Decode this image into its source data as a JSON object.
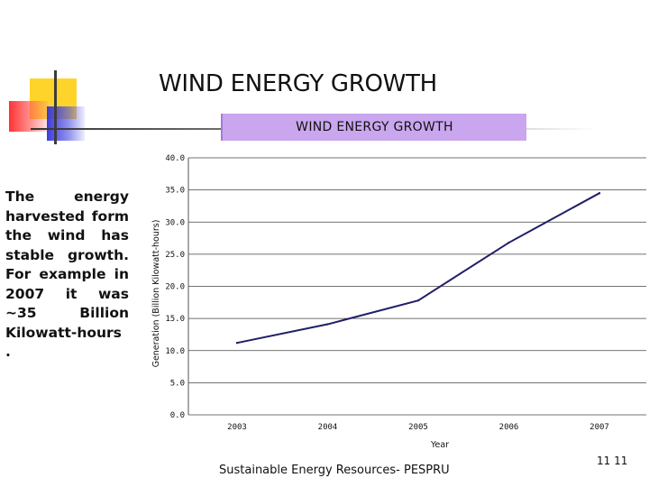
{
  "slide": {
    "title": "WIND ENERGY GROWTH",
    "body_text": "The energy harvested form the wind has stable growth. For example in 2007 it was ~35 Billion Kilowatt-hours .",
    "footer": "Sustainable Energy Resources- PESPRU",
    "page_number": "11 11"
  },
  "colors": {
    "banner": "#c9a6ee",
    "series_line": "#1f1f66",
    "accent_yellow": "#ffd42a",
    "accent_red": "#ff2a2a",
    "accent_blue": "#3232dc"
  },
  "chart_data": {
    "type": "line",
    "title": "WIND ENERGY GROWTH",
    "xlabel": "Year",
    "ylabel": "Generation (Billion Kilowatt-hours)",
    "x": [
      "2003",
      "2004",
      "2005",
      "2006",
      "2007"
    ],
    "series": [
      {
        "name": "Generation",
        "values": [
          11.2,
          14.1,
          17.8,
          26.8,
          34.5
        ]
      }
    ],
    "ylim": [
      0,
      40
    ],
    "yticks": [
      "0.0",
      "5.0",
      "10.0",
      "15.0",
      "20.0",
      "25.0",
      "30.0",
      "35.0",
      "40.0"
    ],
    "grid": "horizontal",
    "legend": "none"
  }
}
